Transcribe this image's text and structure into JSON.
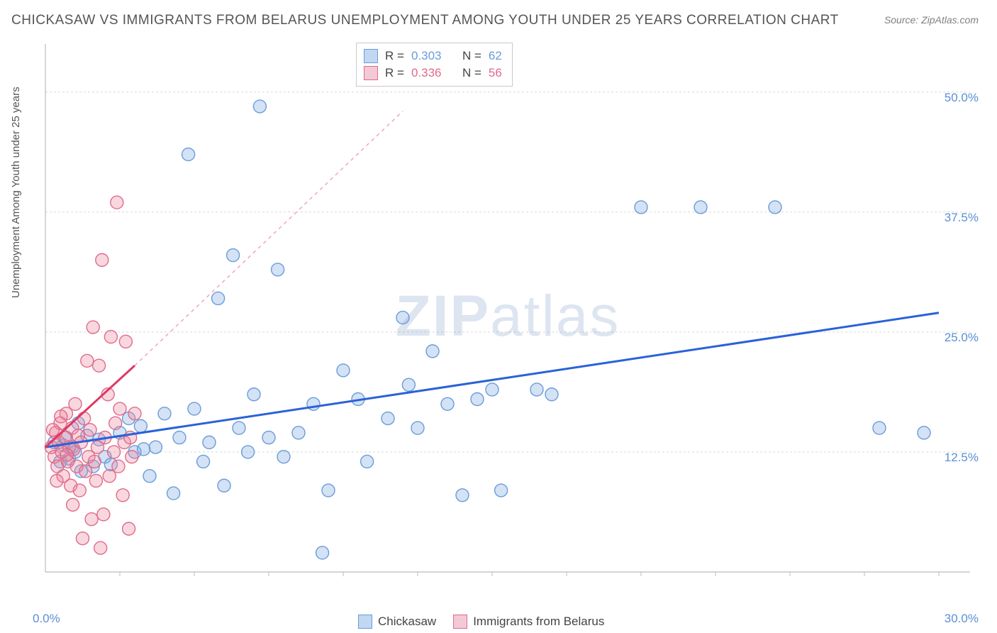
{
  "title": "CHICKASAW VS IMMIGRANTS FROM BELARUS UNEMPLOYMENT AMONG YOUTH UNDER 25 YEARS CORRELATION CHART",
  "source": "Source: ZipAtlas.com",
  "y_axis_label": "Unemployment Among Youth under 25 years",
  "watermark_bold": "ZIP",
  "watermark_rest": "atlas",
  "chart": {
    "type": "scatter",
    "xlim": [
      0,
      30
    ],
    "ylim": [
      0,
      55
    ],
    "x_ticks_label_left": "0.0%",
    "x_ticks_label_right": "30.0%",
    "y_ticks": [
      {
        "val": 12.5,
        "label": "12.5%"
      },
      {
        "val": 25.0,
        "label": "25.0%"
      },
      {
        "val": 37.5,
        "label": "37.5%"
      },
      {
        "val": 50.0,
        "label": "50.0%"
      }
    ],
    "gridline_color": "#d8d8d8",
    "axis_color": "#bcbcbc",
    "background_color": "#ffffff",
    "marker_radius": 9,
    "marker_stroke_width": 1.4,
    "series": [
      {
        "name": "Chickasaw",
        "label": "Chickasaw",
        "fill": "rgba(120,165,225,0.32)",
        "stroke": "#6a9cd8",
        "swatch_fill": "#c1d7f2",
        "swatch_border": "#6a9cd8",
        "r_value": "0.303",
        "n_value": "62",
        "trend": {
          "color": "#2962d9",
          "width": 3,
          "dash": "none",
          "x1": 0,
          "y1": 13.0,
          "x2": 30,
          "y2": 27.0,
          "ext_x2": 30,
          "ext_y2": 27.0
        },
        "points": [
          [
            0.3,
            13.5
          ],
          [
            0.5,
            11.5
          ],
          [
            0.6,
            13.2
          ],
          [
            0.7,
            14.0
          ],
          [
            0.8,
            11.8
          ],
          [
            0.9,
            13.0
          ],
          [
            1.0,
            12.5
          ],
          [
            1.1,
            15.5
          ],
          [
            1.2,
            10.5
          ],
          [
            1.4,
            14.2
          ],
          [
            1.6,
            11.0
          ],
          [
            1.8,
            13.8
          ],
          [
            2.0,
            12.0
          ],
          [
            2.2,
            11.2
          ],
          [
            2.5,
            14.5
          ],
          [
            2.8,
            16.0
          ],
          [
            3.0,
            12.5
          ],
          [
            3.2,
            15.2
          ],
          [
            3.5,
            10.0
          ],
          [
            3.7,
            13.0
          ],
          [
            4.0,
            16.5
          ],
          [
            4.3,
            8.2
          ],
          [
            4.5,
            14.0
          ],
          [
            4.8,
            43.5
          ],
          [
            5.0,
            17.0
          ],
          [
            5.3,
            11.5
          ],
          [
            5.5,
            13.5
          ],
          [
            5.8,
            28.5
          ],
          [
            6.0,
            9.0
          ],
          [
            6.3,
            33.0
          ],
          [
            6.5,
            15.0
          ],
          [
            6.8,
            12.5
          ],
          [
            7.0,
            18.5
          ],
          [
            7.2,
            48.5
          ],
          [
            7.5,
            14.0
          ],
          [
            7.8,
            31.5
          ],
          [
            8.0,
            12.0
          ],
          [
            8.5,
            14.5
          ],
          [
            9.0,
            17.5
          ],
          [
            9.3,
            2.0
          ],
          [
            9.5,
            8.5
          ],
          [
            10.0,
            21.0
          ],
          [
            10.5,
            18.0
          ],
          [
            10.8,
            11.5
          ],
          [
            11.5,
            16.0
          ],
          [
            12.0,
            26.5
          ],
          [
            12.2,
            19.5
          ],
          [
            12.5,
            15.0
          ],
          [
            13.0,
            23.0
          ],
          [
            13.5,
            17.5
          ],
          [
            14.0,
            8.0
          ],
          [
            14.5,
            18.0
          ],
          [
            15.0,
            19.0
          ],
          [
            15.3,
            8.5
          ],
          [
            16.5,
            19.0
          ],
          [
            17.0,
            18.5
          ],
          [
            20.0,
            38.0
          ],
          [
            22.0,
            38.0
          ],
          [
            24.5,
            38.0
          ],
          [
            28.0,
            15.0
          ],
          [
            29.5,
            14.5
          ],
          [
            3.3,
            12.8
          ]
        ]
      },
      {
        "name": "Immigrants from Belarus",
        "label": "Immigrants from Belarus",
        "fill": "rgba(235,130,155,0.32)",
        "stroke": "#e06a8a",
        "swatch_fill": "#f4c9d6",
        "swatch_border": "#e06a8a",
        "r_value": "0.336",
        "n_value": "56",
        "trend": {
          "color": "#e03863",
          "width": 3,
          "dash": "none",
          "x1": 0,
          "y1": 13.0,
          "x2": 3.0,
          "y2": 21.5,
          "ext_dash": "5,5",
          "ext_color": "rgba(224,56,99,0.45)",
          "ext_x2": 12.0,
          "ext_y2": 48.0
        },
        "points": [
          [
            0.2,
            13.0
          ],
          [
            0.3,
            12.0
          ],
          [
            0.35,
            14.5
          ],
          [
            0.4,
            11.0
          ],
          [
            0.45,
            13.5
          ],
          [
            0.5,
            15.5
          ],
          [
            0.55,
            12.5
          ],
          [
            0.6,
            10.0
          ],
          [
            0.65,
            14.0
          ],
          [
            0.7,
            16.5
          ],
          [
            0.75,
            11.5
          ],
          [
            0.8,
            13.0
          ],
          [
            0.85,
            9.0
          ],
          [
            0.9,
            15.0
          ],
          [
            0.95,
            12.8
          ],
          [
            1.0,
            17.5
          ],
          [
            1.05,
            11.0
          ],
          [
            1.1,
            14.2
          ],
          [
            1.15,
            8.5
          ],
          [
            1.2,
            13.5
          ],
          [
            1.3,
            16.0
          ],
          [
            1.35,
            10.5
          ],
          [
            1.4,
            22.0
          ],
          [
            1.45,
            12.0
          ],
          [
            1.5,
            14.8
          ],
          [
            1.6,
            25.5
          ],
          [
            1.65,
            11.5
          ],
          [
            1.7,
            9.5
          ],
          [
            1.75,
            13.0
          ],
          [
            1.8,
            21.5
          ],
          [
            1.9,
            32.5
          ],
          [
            1.95,
            6.0
          ],
          [
            2.0,
            14.0
          ],
          [
            2.1,
            18.5
          ],
          [
            2.15,
            10.0
          ],
          [
            2.2,
            24.5
          ],
          [
            2.3,
            12.5
          ],
          [
            2.35,
            15.5
          ],
          [
            2.4,
            38.5
          ],
          [
            2.45,
            11.0
          ],
          [
            2.5,
            17.0
          ],
          [
            2.6,
            8.0
          ],
          [
            2.65,
            13.5
          ],
          [
            2.7,
            24.0
          ],
          [
            2.8,
            4.5
          ],
          [
            2.85,
            14.0
          ],
          [
            2.9,
            12.0
          ],
          [
            3.0,
            16.5
          ],
          [
            0.25,
            14.8
          ],
          [
            0.38,
            9.5
          ],
          [
            0.52,
            16.2
          ],
          [
            0.72,
            12.2
          ],
          [
            0.92,
            7.0
          ],
          [
            1.25,
            3.5
          ],
          [
            1.55,
            5.5
          ],
          [
            1.85,
            2.5
          ]
        ]
      }
    ]
  },
  "stats_labels": {
    "r_prefix": "R =",
    "n_prefix": "N ="
  }
}
